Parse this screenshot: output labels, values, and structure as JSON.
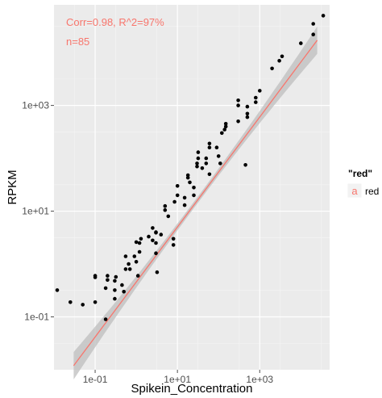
{
  "chart_data": {
    "type": "scatter",
    "title": "",
    "xlabel": "Spikein_Concentration",
    "ylabel": "RPKM",
    "x_scale": "log10",
    "y_scale": "log10",
    "xlim": [
      0.01,
      50000
    ],
    "ylim": [
      0.01,
      80000
    ],
    "x_ticks": [
      0.1,
      10,
      1000
    ],
    "x_tick_labels": [
      "1e-01",
      "1e+01",
      "1e+03"
    ],
    "y_ticks": [
      0.1,
      10,
      1000
    ],
    "y_tick_labels": [
      "1e-01",
      "1e+01",
      "1e+03"
    ],
    "grid": true,
    "annotations": [
      "Corr=0.98, R^2=97%",
      "n=85"
    ],
    "legend": {
      "title": "\"red\"",
      "key_glyph": "a",
      "label": "red",
      "position": "right"
    },
    "fit_line": {
      "intercept_log10": -0.34,
      "slope": 1.04,
      "x_range": [
        0.03,
        25000
      ],
      "color": "#f8766d"
    },
    "points": [
      {
        "x": 0.012,
        "y": 0.32
      },
      {
        "x": 0.025,
        "y": 0.19
      },
      {
        "x": 0.05,
        "y": 0.17
      },
      {
        "x": 0.1,
        "y": 0.19
      },
      {
        "x": 0.1,
        "y": 0.56
      },
      {
        "x": 0.1,
        "y": 0.6
      },
      {
        "x": 0.18,
        "y": 0.09
      },
      {
        "x": 0.18,
        "y": 0.35
      },
      {
        "x": 0.2,
        "y": 0.5
      },
      {
        "x": 0.2,
        "y": 0.6
      },
      {
        "x": 0.3,
        "y": 0.22
      },
      {
        "x": 0.3,
        "y": 0.32
      },
      {
        "x": 0.3,
        "y": 0.48
      },
      {
        "x": 0.32,
        "y": 0.57
      },
      {
        "x": 0.45,
        "y": 0.4
      },
      {
        "x": 0.5,
        "y": 0.3
      },
      {
        "x": 0.55,
        "y": 0.8
      },
      {
        "x": 0.55,
        "y": 1.4
      },
      {
        "x": 0.65,
        "y": 1.0
      },
      {
        "x": 0.7,
        "y": 0.8
      },
      {
        "x": 0.9,
        "y": 1.4
      },
      {
        "x": 1.0,
        "y": 1.1
      },
      {
        "x": 1.0,
        "y": 2.6
      },
      {
        "x": 1.1,
        "y": 0.6
      },
      {
        "x": 1.2,
        "y": 1.7
      },
      {
        "x": 1.2,
        "y": 2.5
      },
      {
        "x": 1.3,
        "y": 3.0
      },
      {
        "x": 2.0,
        "y": 3.3
      },
      {
        "x": 2.5,
        "y": 2.8
      },
      {
        "x": 2.5,
        "y": 4.8
      },
      {
        "x": 3.0,
        "y": 1.6
      },
      {
        "x": 3.0,
        "y": 2.5
      },
      {
        "x": 3.0,
        "y": 3.9
      },
      {
        "x": 3.0,
        "y": 4.0
      },
      {
        "x": 3.2,
        "y": 0.7
      },
      {
        "x": 4.0,
        "y": 3.6
      },
      {
        "x": 5.0,
        "y": 10.5
      },
      {
        "x": 5.0,
        "y": 12.5
      },
      {
        "x": 6.0,
        "y": 8.0
      },
      {
        "x": 8.0,
        "y": 2.3
      },
      {
        "x": 8.0,
        "y": 3.0
      },
      {
        "x": 8.5,
        "y": 15.0
      },
      {
        "x": 10.0,
        "y": 20.0
      },
      {
        "x": 10.0,
        "y": 30.0
      },
      {
        "x": 15.0,
        "y": 13.0
      },
      {
        "x": 15.0,
        "y": 18.0
      },
      {
        "x": 18.0,
        "y": 43.0
      },
      {
        "x": 18.0,
        "y": 48.0
      },
      {
        "x": 20.0,
        "y": 35.0
      },
      {
        "x": 25.0,
        "y": 20.0
      },
      {
        "x": 25.0,
        "y": 28.0
      },
      {
        "x": 30.0,
        "y": 70.0
      },
      {
        "x": 30.0,
        "y": 80.0
      },
      {
        "x": 32.0,
        "y": 100.0
      },
      {
        "x": 32.0,
        "y": 130.0
      },
      {
        "x": 40.0,
        "y": 65.0
      },
      {
        "x": 50.0,
        "y": 80.0
      },
      {
        "x": 50.0,
        "y": 100.0
      },
      {
        "x": 60.0,
        "y": 50.0
      },
      {
        "x": 60.0,
        "y": 160.0
      },
      {
        "x": 60.0,
        "y": 190.0
      },
      {
        "x": 90.0,
        "y": 160.0
      },
      {
        "x": 100.0,
        "y": 110.0
      },
      {
        "x": 110.0,
        "y": 80.0
      },
      {
        "x": 120.0,
        "y": 300.0
      },
      {
        "x": 140.0,
        "y": 350.0
      },
      {
        "x": 150.0,
        "y": 400.0
      },
      {
        "x": 150.0,
        "y": 450.0
      },
      {
        "x": 300.0,
        "y": 500.0
      },
      {
        "x": 300.0,
        "y": 1000.0
      },
      {
        "x": 300.0,
        "y": 1250.0
      },
      {
        "x": 450.0,
        "y": 75.0
      },
      {
        "x": 500.0,
        "y": 600.0
      },
      {
        "x": 500.0,
        "y": 700.0
      },
      {
        "x": 500.0,
        "y": 950.0
      },
      {
        "x": 800.0,
        "y": 1150.0
      },
      {
        "x": 800.0,
        "y": 1400.0
      },
      {
        "x": 1000.0,
        "y": 1900.0
      },
      {
        "x": 2000.0,
        "y": 5000.0
      },
      {
        "x": 3000.0,
        "y": 7000.0
      },
      {
        "x": 3500.0,
        "y": 8500.0
      },
      {
        "x": 10000.0,
        "y": 15000.0
      },
      {
        "x": 20000.0,
        "y": 22000.0
      },
      {
        "x": 20000.0,
        "y": 35000.0
      },
      {
        "x": 35000.0,
        "y": 50000.0
      }
    ]
  }
}
